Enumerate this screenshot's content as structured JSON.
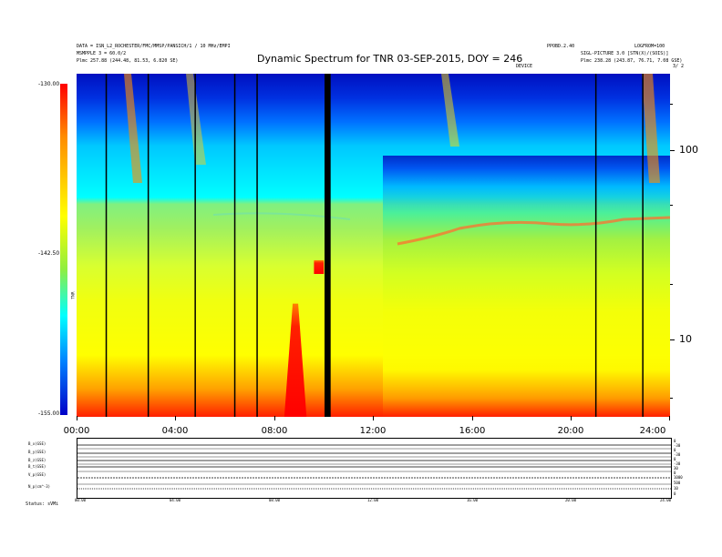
{
  "header": {
    "left_line1": "DATA = ISN_L2_ROCHESTER/FMC/MMSP/PANSICH/1 / 10 MHz/EMPI",
    "left_line2": "MSMPPLE 3 = 60.0/2",
    "left_line3": "Plmc   257.88 (244.48, 81.53, 6.820 SE)",
    "mid_right_top": "PPOBD.2.40",
    "mid_right_small": "DEVICE",
    "right_line1": "LOGFROM=100",
    "right_line2": "SIGL-PICTURE 3.0 [STN(X)/(SOIS)]",
    "right_line3": "Plmc   238.28 (243.87, 76.71, 7.08 GSE)",
    "right_corner": "3/ 2"
  },
  "colorbar": {
    "top_label": "-130.00",
    "mid_label": "-142.50",
    "bottom_label": "-155.00",
    "unit": "TNR"
  },
  "chart_data": {
    "type": "heatmap",
    "title": "Dynamic Spectrum for TNR 03-SEP-2015, DOY = 246",
    "x_ticks": [
      "00:00",
      "04:00",
      "08:00",
      "12:00",
      "16:00",
      "20:00",
      "24:00"
    ],
    "x_range_hours": [
      0,
      24
    ],
    "y_scale": "log",
    "y_ticks": [
      "100",
      "10"
    ],
    "color_range": [
      -155.0,
      -130.0
    ],
    "data_gap_hours": [
      1.2,
      2.9,
      4.8,
      6.4,
      7.3,
      10.1,
      10.2,
      21.0,
      22.9
    ],
    "bursts": [
      {
        "start_hour": 8.4,
        "end_hour": 9.3,
        "level": -130
      },
      {
        "start_hour": 9.6,
        "end_hour": 10.0,
        "level": -131
      }
    ]
  },
  "bottom_panel": {
    "trace_labels": [
      "B_x(GSE)",
      "B_y(GSE)",
      "B_z(GSE)",
      "B_t(GSE)",
      "V_p(GSE)",
      "N_p(cm^-3)"
    ],
    "right_labels": [
      "0",
      "-30",
      "0",
      "-30",
      "0",
      "-30",
      "30",
      "0",
      "1000",
      "500",
      "10",
      "0"
    ],
    "time_labels": [
      "00:00",
      "04:00",
      "08:00",
      "12:00",
      "16:00",
      "20:00",
      "24:00"
    ],
    "footer_left": "Status:  sVMi"
  }
}
